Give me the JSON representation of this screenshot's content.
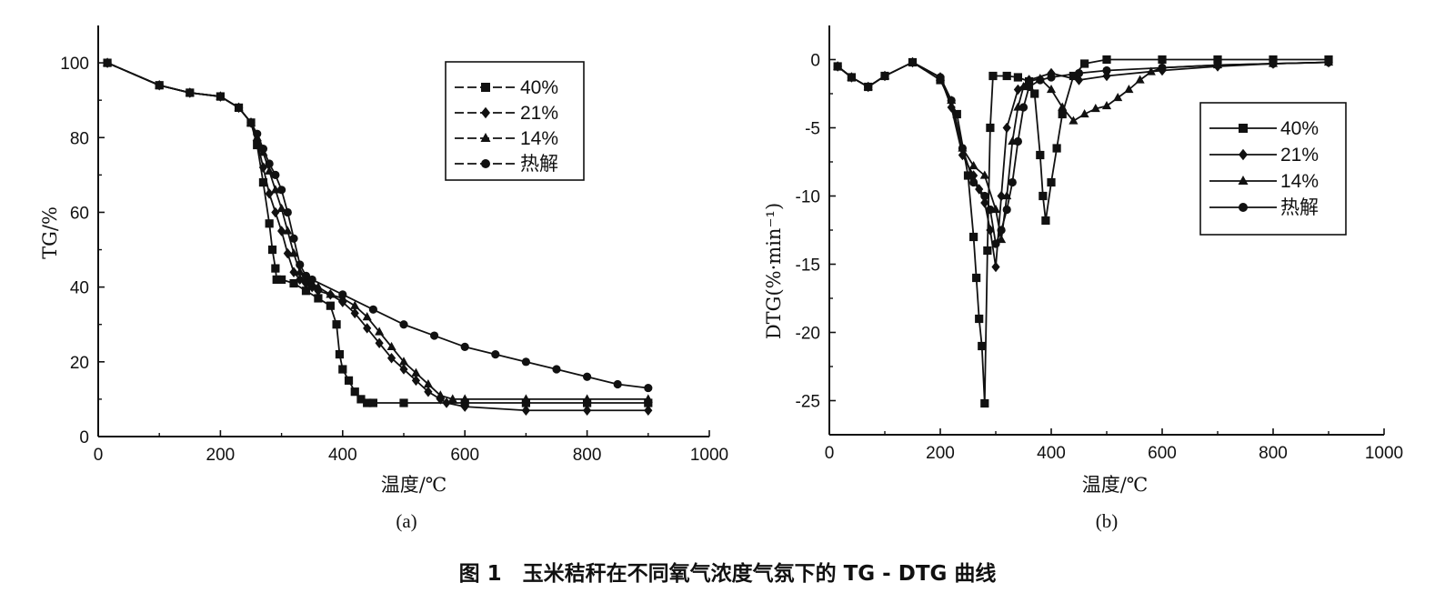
{
  "caption": "图 1　玉米秸秆在不同氧气浓度气氛下的 TG - DTG 曲线",
  "chart_data": [
    {
      "panel": "(a)",
      "type": "line",
      "xlabel": "温度/℃",
      "ylabel": "TG/%",
      "xlim": [
        0,
        1000
      ],
      "ylim": [
        0,
        110
      ],
      "xticks": [
        0,
        200,
        400,
        600,
        800,
        1000
      ],
      "yticks": [
        0,
        20,
        40,
        60,
        80,
        100
      ],
      "legend_position": "top-right",
      "series": [
        {
          "name": "40%",
          "marker": "square",
          "x": [
            15,
            100,
            150,
            200,
            230,
            250,
            260,
            270,
            280,
            285,
            290,
            292,
            300,
            320,
            340,
            360,
            380,
            390,
            395,
            400,
            410,
            420,
            430,
            440,
            450,
            500,
            600,
            700,
            800,
            900
          ],
          "y": [
            100,
            94,
            92,
            91,
            88,
            84,
            78,
            68,
            57,
            50,
            45,
            42,
            42,
            41,
            39,
            37,
            35,
            30,
            22,
            18,
            15,
            12,
            10,
            9,
            9,
            9,
            9,
            9,
            9,
            9
          ]
        },
        {
          "name": "21%",
          "marker": "diamond",
          "x": [
            15,
            100,
            150,
            200,
            230,
            250,
            260,
            270,
            280,
            290,
            300,
            310,
            320,
            330,
            340,
            350,
            360,
            380,
            400,
            420,
            440,
            460,
            480,
            500,
            520,
            540,
            560,
            570,
            600,
            700,
            800,
            900
          ],
          "y": [
            100,
            94,
            92,
            91,
            88,
            84,
            79,
            72,
            65,
            60,
            55,
            49,
            44,
            42,
            41,
            40,
            39,
            38,
            36,
            33,
            29,
            25,
            21,
            18,
            15,
            12,
            10,
            9,
            8,
            7,
            7,
            7
          ]
        },
        {
          "name": "14%",
          "marker": "triangle",
          "x": [
            15,
            100,
            150,
            200,
            230,
            250,
            260,
            270,
            280,
            290,
            300,
            310,
            320,
            330,
            340,
            350,
            360,
            380,
            400,
            420,
            440,
            460,
            480,
            500,
            520,
            540,
            560,
            580,
            600,
            700,
            800,
            900
          ],
          "y": [
            100,
            94,
            92,
            91,
            88,
            84,
            80,
            76,
            71,
            66,
            61,
            55,
            49,
            44,
            42,
            41,
            40,
            38,
            37,
            35,
            32,
            28,
            24,
            20,
            17,
            14,
            11,
            10,
            10,
            10,
            10,
            10
          ]
        },
        {
          "name": "热解",
          "marker": "circle",
          "x": [
            15,
            100,
            150,
            200,
            230,
            250,
            260,
            270,
            280,
            290,
            300,
            310,
            320,
            330,
            340,
            350,
            400,
            450,
            500,
            550,
            600,
            650,
            700,
            750,
            800,
            850,
            900
          ],
          "y": [
            100,
            94,
            92,
            91,
            88,
            84,
            81,
            77,
            73,
            70,
            66,
            60,
            53,
            46,
            43,
            42,
            38,
            34,
            30,
            27,
            24,
            22,
            20,
            18,
            16,
            14,
            13
          ]
        }
      ]
    },
    {
      "panel": "(b)",
      "type": "line",
      "xlabel": "温度/℃",
      "ylabel": "DTG(%·min⁻¹)",
      "xlim": [
        0,
        1000
      ],
      "ylim": [
        -27.5,
        2.5
      ],
      "xticks": [
        0,
        200,
        400,
        600,
        800,
        1000
      ],
      "yticks": [
        0,
        -5,
        -10,
        -15,
        -20,
        -25
      ],
      "legend_position": "top-right",
      "series": [
        {
          "name": "40%",
          "marker": "square",
          "x": [
            15,
            40,
            70,
            100,
            150,
            200,
            230,
            250,
            260,
            265,
            270,
            275,
            280,
            285,
            290,
            295,
            320,
            340,
            360,
            370,
            380,
            385,
            390,
            400,
            410,
            420,
            440,
            460,
            500,
            600,
            700,
            800,
            900
          ],
          "y": [
            -0.5,
            -1.3,
            -2,
            -1.2,
            -0.2,
            -1.5,
            -4,
            -8.5,
            -13,
            -16,
            -19,
            -21,
            -25.2,
            -14,
            -5,
            -1.2,
            -1.2,
            -1.3,
            -1.6,
            -2.5,
            -7,
            -10,
            -11.8,
            -9,
            -6.5,
            -4,
            -1.2,
            -0.3,
            0,
            0,
            0,
            0,
            0
          ]
        },
        {
          "name": "21%",
          "marker": "diamond",
          "x": [
            15,
            40,
            70,
            100,
            150,
            200,
            220,
            240,
            260,
            270,
            280,
            290,
            300,
            310,
            320,
            340,
            360,
            400,
            450,
            500,
            600,
            700,
            800,
            900
          ],
          "y": [
            -0.5,
            -1.3,
            -2,
            -1.2,
            -0.2,
            -1.3,
            -3.5,
            -7,
            -8.5,
            -9.5,
            -10.5,
            -12.5,
            -15.2,
            -10,
            -5,
            -2.2,
            -1.5,
            -1,
            -1.5,
            -1.2,
            -0.8,
            -0.5,
            -0.3,
            -0.2
          ]
        },
        {
          "name": "14%",
          "marker": "triangle",
          "x": [
            15,
            40,
            70,
            100,
            150,
            200,
            220,
            240,
            260,
            280,
            300,
            310,
            320,
            330,
            340,
            350,
            360,
            380,
            400,
            420,
            440,
            460,
            480,
            500,
            520,
            540,
            560,
            580,
            600,
            700,
            800,
            900
          ],
          "y": [
            -0.5,
            -1.3,
            -2,
            -1.2,
            -0.2,
            -1.3,
            -3,
            -6.5,
            -7.8,
            -8.5,
            -11,
            -13.2,
            -10,
            -6,
            -3.5,
            -2,
            -1.6,
            -1.4,
            -2.2,
            -3.5,
            -4.5,
            -4,
            -3.6,
            -3.4,
            -2.8,
            -2.2,
            -1.5,
            -0.9,
            -0.6,
            -0.4,
            -0.3,
            -0.2
          ]
        },
        {
          "name": "热解",
          "marker": "circle",
          "x": [
            15,
            40,
            70,
            100,
            150,
            200,
            220,
            240,
            260,
            280,
            290,
            300,
            310,
            320,
            330,
            340,
            350,
            360,
            380,
            400,
            450,
            500,
            600,
            700,
            800,
            900
          ],
          "y": [
            -0.5,
            -1.3,
            -2,
            -1.2,
            -0.2,
            -1.3,
            -3,
            -6.5,
            -9,
            -10,
            -11,
            -13.5,
            -12.5,
            -11,
            -9,
            -6,
            -3.5,
            -2,
            -1.5,
            -1.3,
            -1,
            -0.8,
            -0.6,
            -0.4,
            -0.3,
            -0.2
          ]
        }
      ]
    }
  ]
}
